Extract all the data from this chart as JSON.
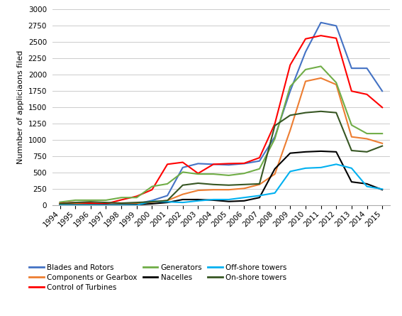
{
  "years": [
    1994,
    1995,
    1996,
    1997,
    1998,
    1999,
    2000,
    2001,
    2002,
    2003,
    2004,
    2005,
    2006,
    2007,
    2008,
    2009,
    2010,
    2011,
    2012,
    2013,
    2014,
    2015
  ],
  "series": [
    {
      "name": "Blades and Rotors",
      "color": "#4472C4",
      "values": [
        25,
        35,
        25,
        20,
        18,
        25,
        75,
        150,
        580,
        640,
        630,
        620,
        640,
        680,
        1050,
        1750,
        2350,
        2800,
        2750,
        2100,
        2100,
        1750
      ]
    },
    {
      "name": "Components or Gearbox",
      "color": "#ED7D31",
      "values": [
        15,
        25,
        20,
        15,
        15,
        25,
        50,
        75,
        170,
        230,
        240,
        240,
        260,
        320,
        480,
        1150,
        1900,
        1950,
        1850,
        1050,
        1020,
        950
      ]
    },
    {
      "name": "Control of Turbines",
      "color": "#FF0000",
      "values": [
        35,
        45,
        35,
        25,
        85,
        140,
        240,
        630,
        660,
        490,
        630,
        640,
        645,
        730,
        1250,
        2150,
        2550,
        2600,
        2560,
        1750,
        1700,
        1500
      ]
    },
    {
      "name": "Generators",
      "color": "#70AD47",
      "values": [
        50,
        80,
        80,
        80,
        120,
        120,
        290,
        330,
        510,
        480,
        480,
        460,
        490,
        560,
        1020,
        1820,
        2080,
        2130,
        1880,
        1230,
        1100,
        1100
      ]
    },
    {
      "name": "Nacelles",
      "color": "#000000",
      "values": [
        8,
        8,
        8,
        8,
        8,
        12,
        25,
        45,
        90,
        90,
        80,
        60,
        70,
        120,
        560,
        800,
        820,
        830,
        820,
        360,
        330,
        240
      ]
    },
    {
      "name": "Off-shore towers",
      "color": "#00B0F0",
      "values": [
        4,
        4,
        4,
        4,
        4,
        4,
        65,
        55,
        45,
        70,
        90,
        90,
        120,
        150,
        190,
        520,
        570,
        580,
        630,
        570,
        290,
        250
      ]
    },
    {
      "name": "On-shore towers",
      "color": "#375623",
      "values": [
        25,
        45,
        55,
        45,
        35,
        45,
        55,
        75,
        310,
        340,
        320,
        310,
        320,
        330,
        1220,
        1380,
        1420,
        1440,
        1420,
        840,
        820,
        910
      ]
    }
  ],
  "legend_order": [
    "Blades and Rotors",
    "Components or Gearbox",
    "Control of Turbines",
    "Generators",
    "Nacelles",
    "Off-shore towers",
    "On-shore towers"
  ],
  "ylabel": "Numnber of appliciaons filed",
  "ylim": [
    0,
    3000
  ],
  "yticks": [
    0,
    250,
    500,
    750,
    1000,
    1250,
    1500,
    1750,
    2000,
    2250,
    2500,
    2750,
    3000
  ],
  "background_color": "#FFFFFF",
  "plot_bg_color": "#FFFFFF",
  "grid_color": "#CCCCCC"
}
